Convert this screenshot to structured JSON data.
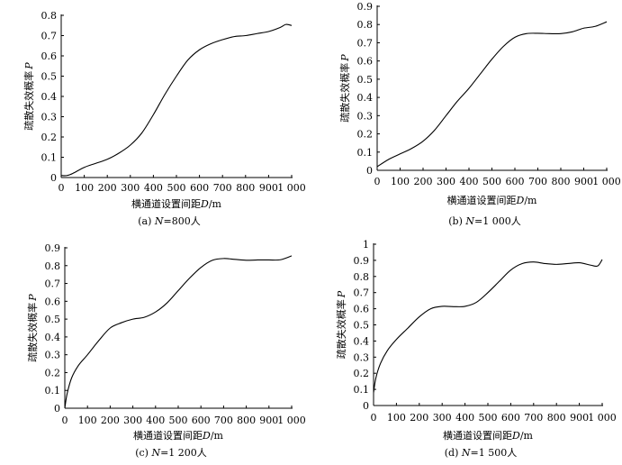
{
  "chart_data": [
    {
      "type": "line",
      "panel_id": "a",
      "caption_prefix": "(a) ",
      "caption_var": "N",
      "caption_rest": "=800人",
      "xlabel_main": "横通道设置间距",
      "xlabel_var": "D",
      "xlabel_unit": "/m",
      "ylabel_main": "疏散失效概率",
      "ylabel_var": "P",
      "xlim": [
        0,
        1000
      ],
      "ylim": [
        0,
        0.8
      ],
      "xticks": [
        0,
        100,
        200,
        300,
        400,
        500,
        600,
        700,
        800,
        900,
        1000
      ],
      "xtick_labels": [
        "0",
        "100",
        "200",
        "300",
        "400",
        "500",
        "600",
        "700",
        "800",
        "900",
        "1 000"
      ],
      "yticks": [
        0,
        0.1,
        0.2,
        0.3,
        0.4,
        0.5,
        0.6,
        0.7,
        0.8
      ],
      "ytick_labels": [
        "0",
        "0.1",
        "0.2",
        "0.3",
        "0.4",
        "0.5",
        "0.6",
        "0.7",
        "0.8"
      ],
      "x": [
        0,
        25,
        50,
        100,
        150,
        200,
        250,
        300,
        350,
        400,
        450,
        500,
        550,
        600,
        650,
        700,
        750,
        800,
        850,
        900,
        950,
        975,
        1000
      ],
      "y": [
        0.01,
        0.01,
        0.02,
        0.05,
        0.07,
        0.09,
        0.12,
        0.16,
        0.22,
        0.31,
        0.41,
        0.5,
        0.58,
        0.63,
        0.66,
        0.68,
        0.695,
        0.7,
        0.71,
        0.72,
        0.74,
        0.755,
        0.75
      ]
    },
    {
      "type": "line",
      "panel_id": "b",
      "caption_prefix": "(b) ",
      "caption_var": "N",
      "caption_rest": "=1 000人",
      "xlabel_main": "横通道设置间距",
      "xlabel_var": "D",
      "xlabel_unit": "/m",
      "ylabel_main": "疏散失效概率",
      "ylabel_var": "P",
      "xlim": [
        0,
        1000
      ],
      "ylim": [
        0,
        0.9
      ],
      "xticks": [
        0,
        100,
        200,
        300,
        400,
        500,
        600,
        700,
        800,
        900,
        1000
      ],
      "xtick_labels": [
        "0",
        "100",
        "200",
        "300",
        "400",
        "500",
        "600",
        "700",
        "800",
        "900",
        "1 000"
      ],
      "yticks": [
        0,
        0.1,
        0.2,
        0.3,
        0.4,
        0.5,
        0.6,
        0.7,
        0.8,
        0.9
      ],
      "ytick_labels": [
        "0",
        "0.1",
        "0.2",
        "0.3",
        "0.4",
        "0.5",
        "0.6",
        "0.7",
        "0.8",
        "0.9"
      ],
      "x": [
        0,
        50,
        100,
        150,
        200,
        250,
        300,
        350,
        400,
        450,
        500,
        550,
        600,
        650,
        700,
        750,
        800,
        850,
        900,
        950,
        1000
      ],
      "y": [
        0.02,
        0.06,
        0.09,
        0.12,
        0.16,
        0.22,
        0.3,
        0.38,
        0.45,
        0.53,
        0.61,
        0.68,
        0.73,
        0.75,
        0.752,
        0.75,
        0.75,
        0.76,
        0.78,
        0.79,
        0.815
      ]
    },
    {
      "type": "line",
      "panel_id": "c",
      "caption_prefix": "(c) ",
      "caption_var": "N",
      "caption_rest": "=1 200人",
      "xlabel_main": "横通道设置间距",
      "xlabel_var": "D",
      "xlabel_unit": "/m",
      "ylabel_main": "疏散失效概率",
      "ylabel_var": "P",
      "xlim": [
        0,
        1000
      ],
      "ylim": [
        0,
        0.9
      ],
      "xticks": [
        0,
        100,
        200,
        300,
        400,
        500,
        600,
        700,
        800,
        900,
        1000
      ],
      "xtick_labels": [
        "0",
        "100",
        "200",
        "300",
        "400",
        "500",
        "600",
        "700",
        "800",
        "900",
        "1 000"
      ],
      "yticks": [
        0,
        0.1,
        0.2,
        0.3,
        0.4,
        0.5,
        0.6,
        0.7,
        0.8,
        0.9
      ],
      "ytick_labels": [
        "0",
        "0.1",
        "0.2",
        "0.3",
        "0.4",
        "0.5",
        "0.6",
        "0.7",
        "0.8",
        "0.9"
      ],
      "x": [
        0,
        10,
        30,
        60,
        100,
        150,
        200,
        250,
        300,
        350,
        400,
        450,
        500,
        550,
        600,
        650,
        700,
        750,
        800,
        850,
        900,
        950,
        1000
      ],
      "y": [
        0.0,
        0.08,
        0.17,
        0.24,
        0.3,
        0.38,
        0.45,
        0.48,
        0.5,
        0.51,
        0.54,
        0.59,
        0.66,
        0.73,
        0.79,
        0.83,
        0.84,
        0.835,
        0.83,
        0.832,
        0.832,
        0.833,
        0.855
      ]
    },
    {
      "type": "line",
      "panel_id": "d",
      "caption_prefix": "(d) ",
      "caption_var": "N",
      "caption_rest": "=1 500人",
      "xlabel_main": "横通道设置间距",
      "xlabel_var": "D",
      "xlabel_unit": "/m",
      "ylabel_main": "疏散失效概率",
      "ylabel_var": "P",
      "xlim": [
        0,
        1000
      ],
      "ylim": [
        0,
        1
      ],
      "xticks": [
        0,
        100,
        200,
        300,
        400,
        500,
        600,
        700,
        800,
        900,
        1000
      ],
      "xtick_labels": [
        "0",
        "100",
        "200",
        "300",
        "400",
        "500",
        "600",
        "700",
        "800",
        "900",
        "1 000"
      ],
      "yticks": [
        0,
        0.1,
        0.2,
        0.3,
        0.4,
        0.5,
        0.6,
        0.7,
        0.8,
        0.9,
        1
      ],
      "ytick_labels": [
        "0",
        "0.1",
        "0.2",
        "0.3",
        "0.4",
        "0.5",
        "0.6",
        "0.7",
        "0.8",
        "0.9",
        "1"
      ],
      "x": [
        0,
        10,
        30,
        60,
        100,
        150,
        200,
        250,
        300,
        350,
        400,
        450,
        500,
        550,
        600,
        650,
        700,
        750,
        800,
        850,
        900,
        950,
        980,
        1000
      ],
      "y": [
        0.08,
        0.17,
        0.26,
        0.34,
        0.41,
        0.48,
        0.55,
        0.6,
        0.615,
        0.613,
        0.615,
        0.64,
        0.7,
        0.77,
        0.84,
        0.88,
        0.89,
        0.88,
        0.875,
        0.88,
        0.885,
        0.87,
        0.865,
        0.905
      ]
    }
  ]
}
